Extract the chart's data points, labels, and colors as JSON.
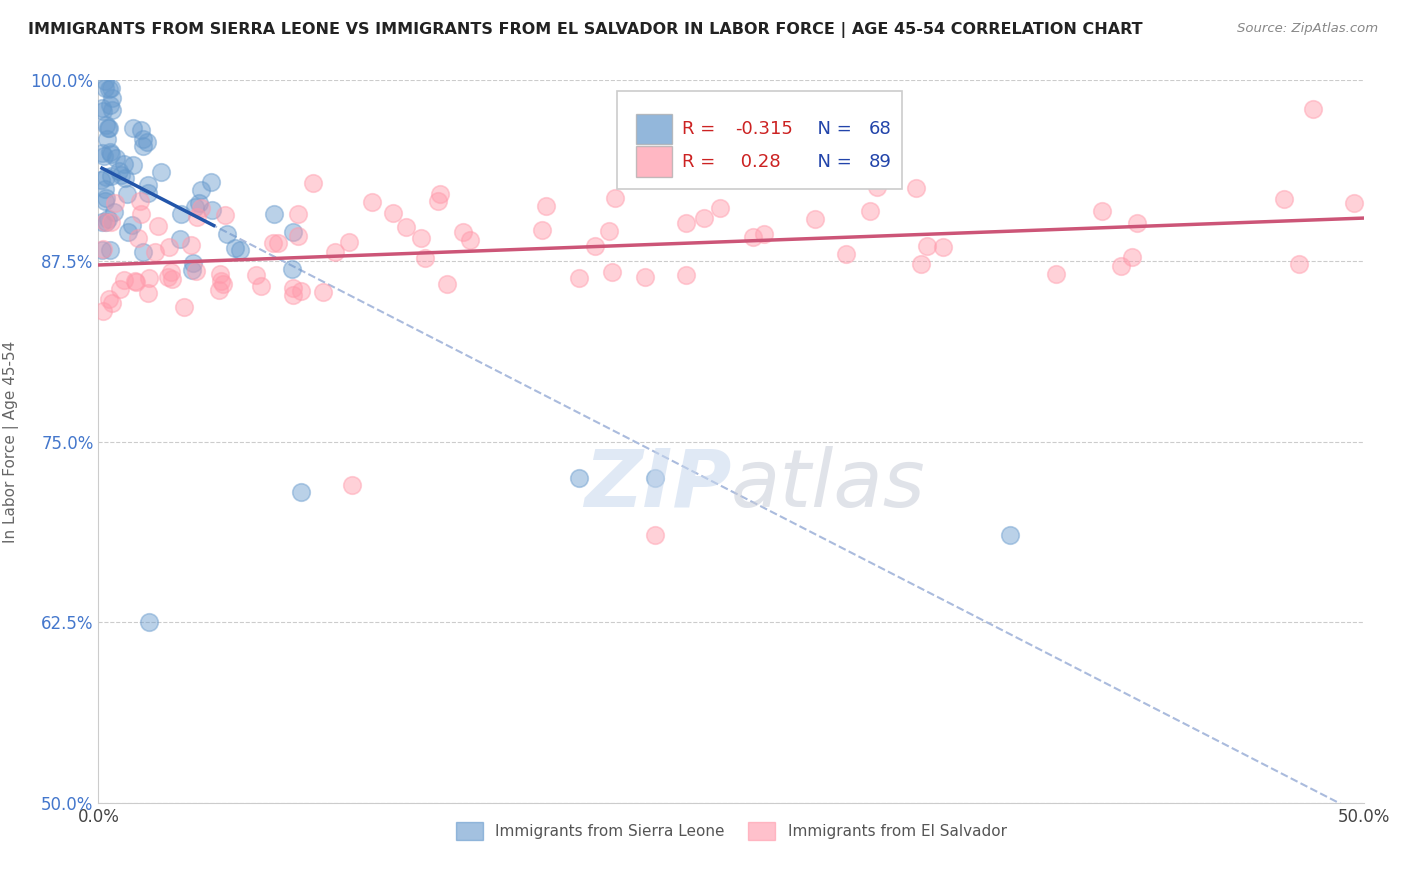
{
  "title": "IMMIGRANTS FROM SIERRA LEONE VS IMMIGRANTS FROM EL SALVADOR IN LABOR FORCE | AGE 45-54 CORRELATION CHART",
  "source": "Source: ZipAtlas.com",
  "ylabel": "In Labor Force | Age 45-54",
  "xlim": [
    0.0,
    0.5
  ],
  "ylim": [
    0.5,
    1.0
  ],
  "x_tick_labels": [
    "0.0%",
    "",
    "",
    "",
    "",
    "50.0%"
  ],
  "y_tick_labels": [
    "50.0%",
    "62.5%",
    "75.0%",
    "87.5%",
    "100.0%"
  ],
  "sierra_leone_color": "#6699cc",
  "el_salvador_color": "#ff99aa",
  "sierra_leone_R": -0.315,
  "sierra_leone_N": 68,
  "el_salvador_R": 0.28,
  "el_salvador_N": 89,
  "sierra_leone_line_color": "#2255aa",
  "el_salvador_line_color": "#cc5577",
  "dash_line_color": "#aabbdd",
  "legend_label_sierra": "Immigrants from Sierra Leone",
  "legend_label_salvador": "Immigrants from El Salvador",
  "background_color": "#ffffff",
  "grid_color": "#cccccc",
  "r_color": "#cc2222",
  "n_color": "#2244aa",
  "title_color": "#222222",
  "source_color": "#888888",
  "ylabel_color": "#666666",
  "yticklabel_color": "#4477cc",
  "xticklabel_color": "#444444"
}
